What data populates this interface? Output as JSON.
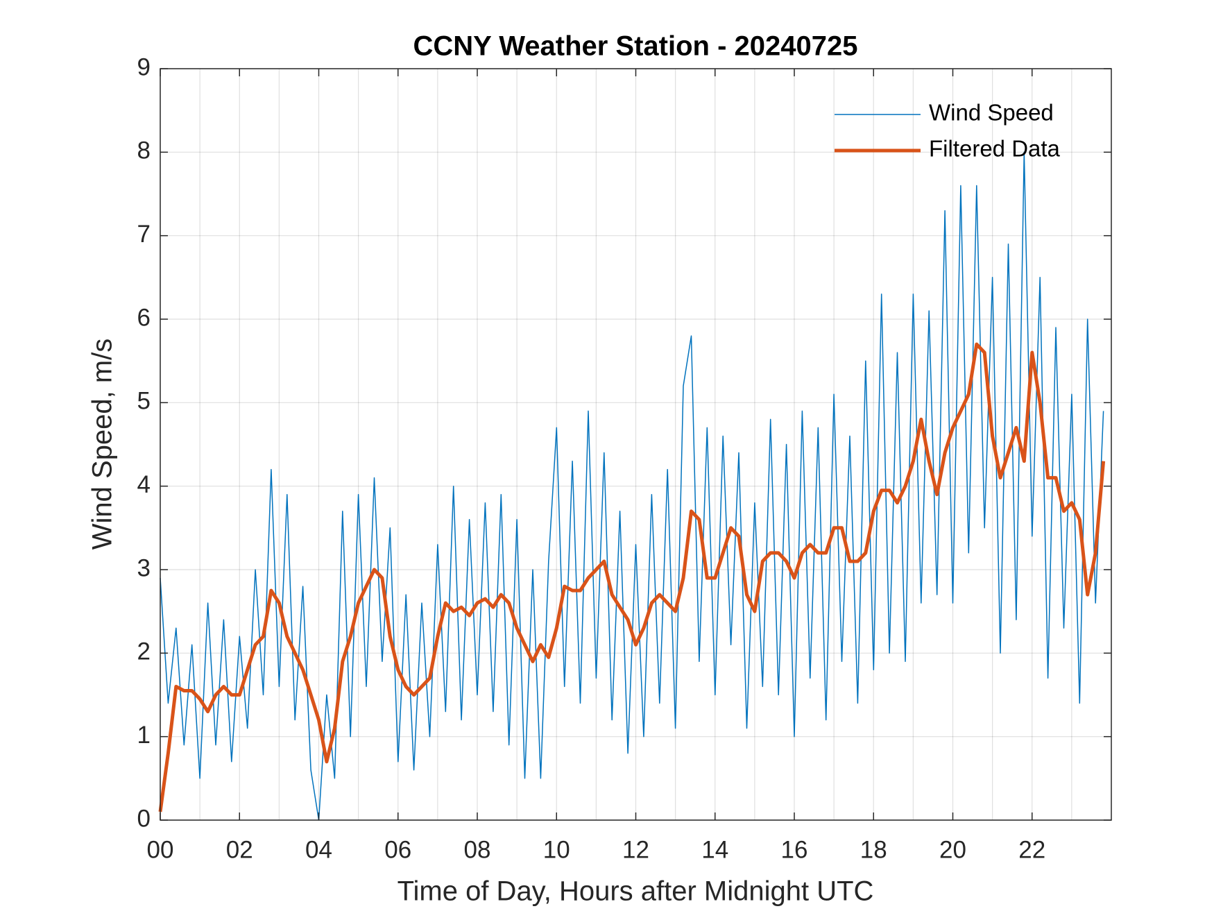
{
  "chart_data": {
    "type": "line",
    "title": "CCNY Weather Station - 20240725",
    "xlabel": "Time of Day, Hours after Midnight UTC",
    "ylabel": "Wind Speed, m/s",
    "xlim": [
      0,
      24
    ],
    "ylim": [
      0,
      9
    ],
    "xticks": [
      {
        "value": 0,
        "label": "00"
      },
      {
        "value": 2,
        "label": "02"
      },
      {
        "value": 4,
        "label": "04"
      },
      {
        "value": 6,
        "label": "06"
      },
      {
        "value": 8,
        "label": "08"
      },
      {
        "value": 10,
        "label": "10"
      },
      {
        "value": 12,
        "label": "12"
      },
      {
        "value": 14,
        "label": "14"
      },
      {
        "value": 16,
        "label": "16"
      },
      {
        "value": 18,
        "label": "18"
      },
      {
        "value": 20,
        "label": "20"
      },
      {
        "value": 22,
        "label": "22"
      }
    ],
    "xminorgrid": [
      1,
      3,
      5,
      7,
      9,
      11,
      13,
      15,
      17,
      19,
      21,
      23
    ],
    "yticks": [
      0,
      1,
      2,
      3,
      4,
      5,
      6,
      7,
      8,
      9
    ],
    "grid": true,
    "legend_position": "upper right",
    "x": [
      0,
      0.2,
      0.4,
      0.6,
      0.8,
      1.0,
      1.2,
      1.4,
      1.6,
      1.8,
      2.0,
      2.2,
      2.4,
      2.6,
      2.8,
      3.0,
      3.2,
      3.4,
      3.6,
      3.8,
      4.0,
      4.2,
      4.4,
      4.6,
      4.8,
      5.0,
      5.2,
      5.4,
      5.6,
      5.8,
      6.0,
      6.2,
      6.4,
      6.6,
      6.8,
      7.0,
      7.2,
      7.4,
      7.6,
      7.8,
      8.0,
      8.2,
      8.4,
      8.6,
      8.8,
      9.0,
      9.2,
      9.4,
      9.6,
      9.8,
      10.0,
      10.2,
      10.4,
      10.6,
      10.8,
      11.0,
      11.2,
      11.4,
      11.6,
      11.8,
      12.0,
      12.2,
      12.4,
      12.6,
      12.8,
      13.0,
      13.2,
      13.4,
      13.6,
      13.8,
      14.0,
      14.2,
      14.4,
      14.6,
      14.8,
      15.0,
      15.2,
      15.4,
      15.6,
      15.8,
      16.0,
      16.2,
      16.4,
      16.6,
      16.8,
      17.0,
      17.2,
      17.4,
      17.6,
      17.8,
      18.0,
      18.2,
      18.4,
      18.6,
      18.8,
      19.0,
      19.2,
      19.4,
      19.6,
      19.8,
      20.0,
      20.2,
      20.4,
      20.6,
      20.8,
      21.0,
      21.2,
      21.4,
      21.6,
      21.8,
      22.0,
      22.2,
      22.4,
      22.6,
      22.8,
      23.0,
      23.2,
      23.4,
      23.6,
      23.8
    ],
    "series": [
      {
        "name": "Wind Speed",
        "color": "#0072BD",
        "width": 1.5,
        "values": [
          2.9,
          1.4,
          2.3,
          0.9,
          2.1,
          0.5,
          2.6,
          0.9,
          2.4,
          0.7,
          2.2,
          1.1,
          3.0,
          1.5,
          4.2,
          1.6,
          3.9,
          1.2,
          2.8,
          0.6,
          0.0,
          1.5,
          0.5,
          3.7,
          1.0,
          3.9,
          1.6,
          4.1,
          1.9,
          3.5,
          0.7,
          2.7,
          0.6,
          2.6,
          1.0,
          3.3,
          1.3,
          4.0,
          1.2,
          3.6,
          1.5,
          3.8,
          1.3,
          3.9,
          0.9,
          3.6,
          0.5,
          3.0,
          0.5,
          3.1,
          4.7,
          1.6,
          4.3,
          1.4,
          4.9,
          1.7,
          4.4,
          1.2,
          3.7,
          0.8,
          3.3,
          1.0,
          3.9,
          1.4,
          4.2,
          1.1,
          5.2,
          5.8,
          1.9,
          4.7,
          1.5,
          4.6,
          2.1,
          4.4,
          1.1,
          3.8,
          1.6,
          4.8,
          1.5,
          4.5,
          1.0,
          4.9,
          1.7,
          4.7,
          1.2,
          5.1,
          1.9,
          4.6,
          1.4,
          5.5,
          1.8,
          6.3,
          2.0,
          5.6,
          1.9,
          6.3,
          2.6,
          6.1,
          2.7,
          7.3,
          2.6,
          7.6,
          3.2,
          7.6,
          3.5,
          6.5,
          2.0,
          6.9,
          2.4,
          8.0,
          3.4,
          6.5,
          1.7,
          5.9,
          2.3,
          5.1,
          1.4,
          6.0,
          2.6,
          4.9
        ]
      },
      {
        "name": "Filtered Data",
        "color": "#D95319",
        "width": 5,
        "values": [
          0.1,
          0.8,
          1.6,
          1.55,
          1.55,
          1.45,
          1.3,
          1.5,
          1.6,
          1.5,
          1.5,
          1.8,
          2.1,
          2.2,
          2.75,
          2.6,
          2.2,
          2.0,
          1.8,
          1.5,
          1.2,
          0.7,
          1.1,
          1.9,
          2.2,
          2.6,
          2.8,
          3.0,
          2.9,
          2.2,
          1.8,
          1.6,
          1.5,
          1.6,
          1.7,
          2.2,
          2.6,
          2.5,
          2.55,
          2.45,
          2.6,
          2.65,
          2.55,
          2.7,
          2.6,
          2.3,
          2.1,
          1.9,
          2.1,
          1.95,
          2.3,
          2.8,
          2.75,
          2.75,
          2.9,
          3.0,
          3.1,
          2.7,
          2.55,
          2.4,
          2.1,
          2.3,
          2.6,
          2.7,
          2.6,
          2.5,
          2.9,
          3.7,
          3.6,
          2.9,
          2.9,
          3.2,
          3.5,
          3.4,
          2.7,
          2.5,
          3.1,
          3.2,
          3.2,
          3.1,
          2.9,
          3.2,
          3.3,
          3.2,
          3.2,
          3.5,
          3.5,
          3.1,
          3.1,
          3.2,
          3.7,
          3.95,
          3.95,
          3.8,
          4.0,
          4.3,
          4.8,
          4.3,
          3.9,
          4.4,
          4.7,
          4.9,
          5.1,
          5.7,
          5.6,
          4.6,
          4.1,
          4.4,
          4.7,
          4.3,
          5.6,
          5.0,
          4.1,
          4.1,
          3.7,
          3.8,
          3.6,
          2.7,
          3.2,
          4.3
        ]
      }
    ]
  }
}
